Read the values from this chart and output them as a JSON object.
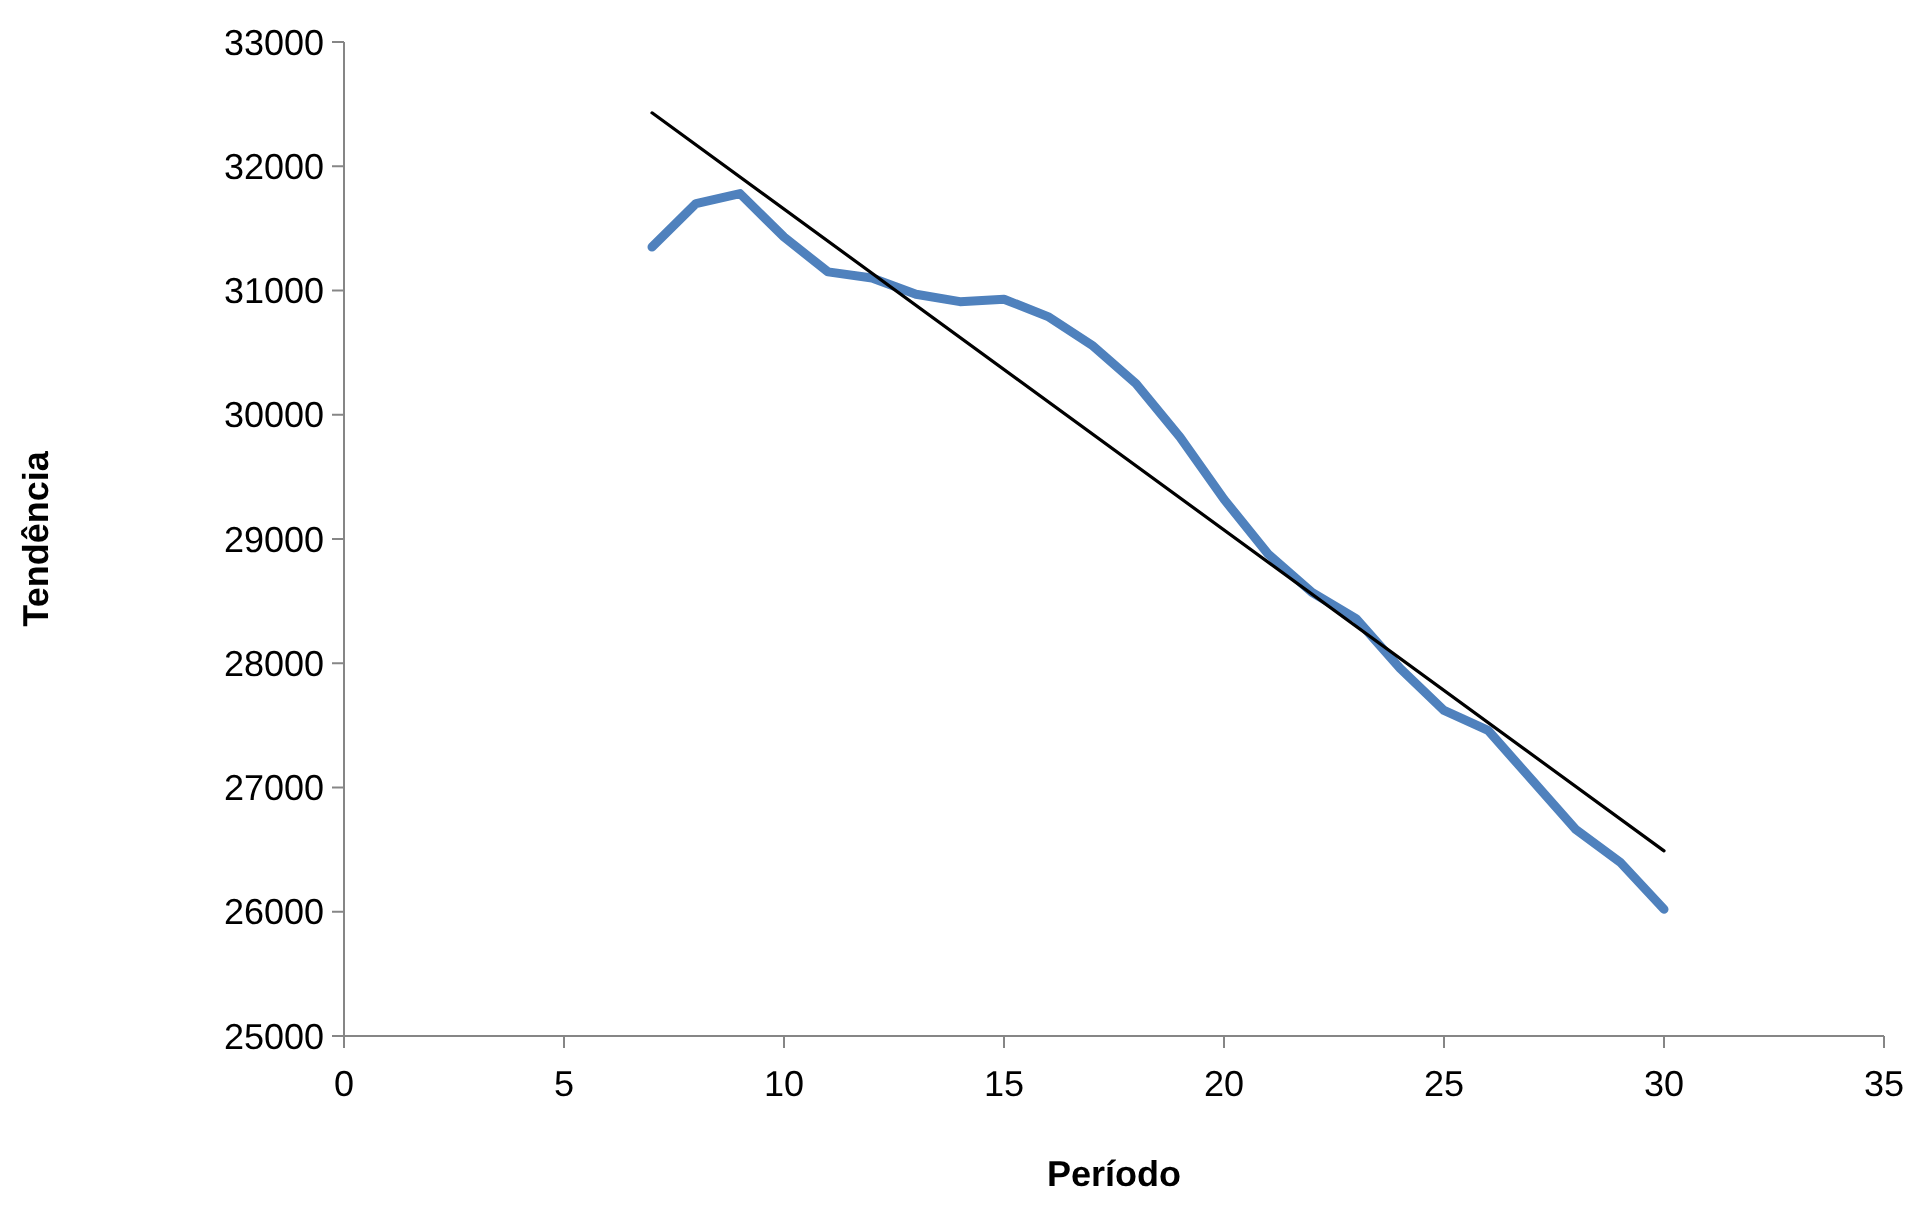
{
  "chart_data": {
    "type": "line",
    "xlabel": "Período",
    "ylabel": "Tendência",
    "xlim": [
      0,
      35
    ],
    "xticks": [
      0,
      5,
      10,
      15,
      20,
      25,
      30,
      35
    ],
    "ylim": [
      25000,
      33000
    ],
    "yticks": [
      25000,
      26000,
      27000,
      28000,
      29000,
      30000,
      31000,
      32000,
      33000
    ],
    "grid": false,
    "marker": "none",
    "line_style": "solid",
    "series": [
      {
        "color": "#4f81bd",
        "x": [
          7,
          8,
          9,
          10,
          11,
          12,
          13,
          14,
          15,
          16,
          17,
          18,
          19,
          20,
          21,
          22,
          23,
          24,
          25,
          26,
          27,
          28,
          29,
          30
        ],
        "values": [
          31350,
          31700,
          31780,
          31430,
          31150,
          31100,
          30970,
          30910,
          30930,
          30790,
          30560,
          30250,
          29820,
          29320,
          28880,
          28570,
          28360,
          27960,
          27620,
          27460,
          27060,
          26660,
          26400,
          26020
        ]
      },
      {
        "color": "#000000",
        "x": [
          7,
          30
        ],
        "values": [
          32430,
          26490
        ]
      }
    ]
  }
}
